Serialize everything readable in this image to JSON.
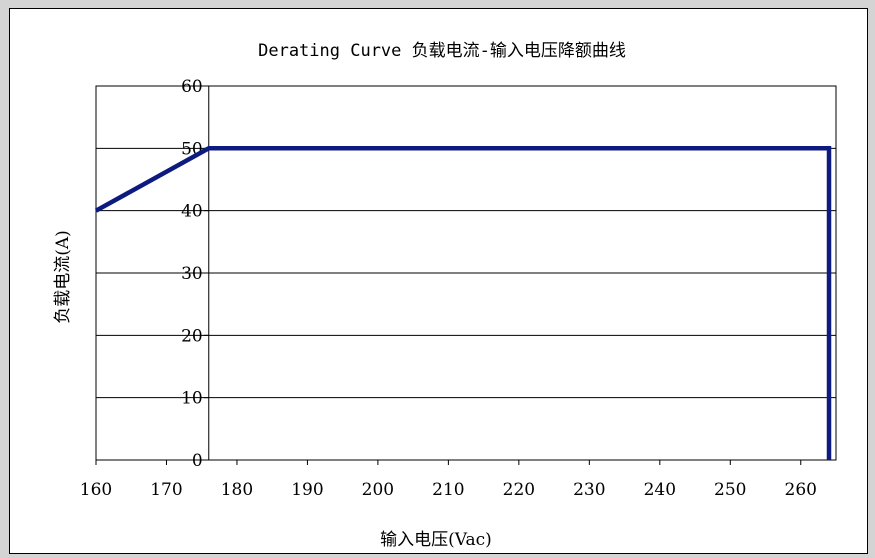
{
  "chart_data": {
    "type": "line",
    "title": "Derating Curve    负载电流-输入电压降额曲线",
    "xlabel": "输入电压(Vac)",
    "ylabel": "负载电流(A)",
    "xlim": [
      160,
      265
    ],
    "ylim": [
      0,
      60
    ],
    "x_ticks": [
      160,
      170,
      180,
      190,
      200,
      210,
      220,
      230,
      240,
      250,
      260
    ],
    "y_ticks": [
      0,
      10,
      20,
      30,
      40,
      50,
      60
    ],
    "grid": "horizontal",
    "y_axis_at_x": 176,
    "series": [
      {
        "color": "#0d1a80",
        "points": [
          [
            160,
            40
          ],
          [
            176,
            50
          ],
          [
            264,
            50
          ],
          [
            264,
            0
          ]
        ]
      }
    ]
  }
}
